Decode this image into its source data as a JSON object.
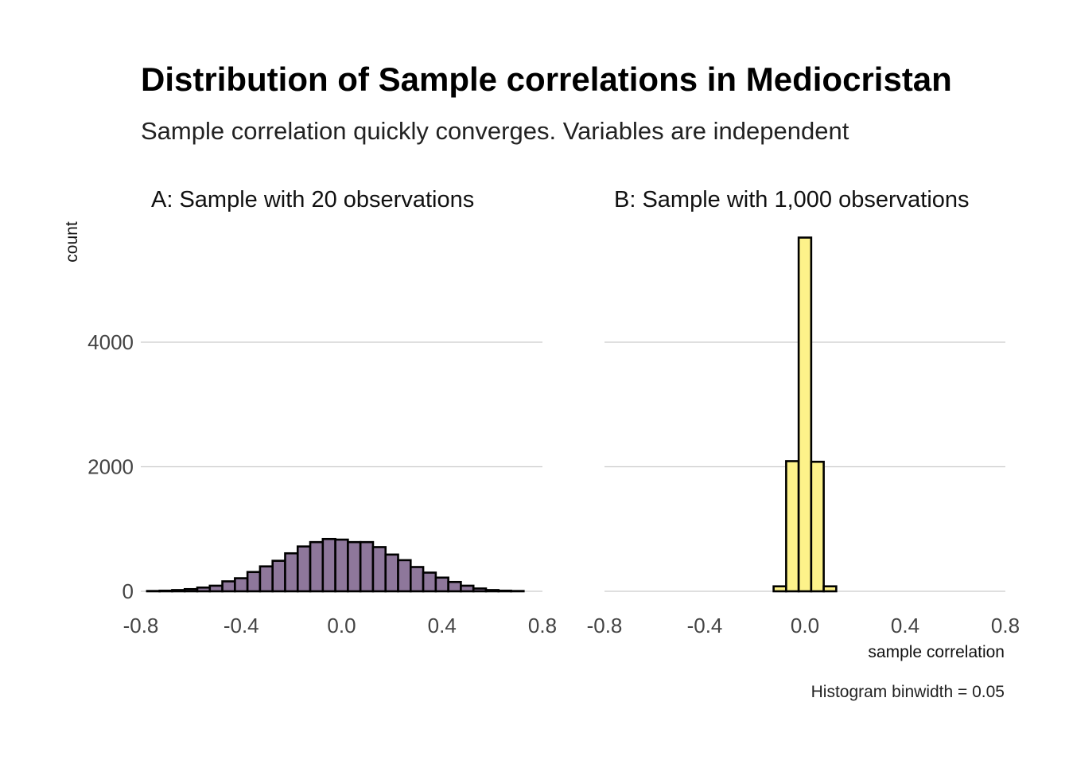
{
  "chart_data": {
    "type": "bar",
    "title": "Distribution of Sample correlations in Mediocristan",
    "subtitle": "Sample correlation quickly converges. Variables are independent",
    "xlabel": "sample correlation",
    "ylabel": "count",
    "caption": "Histogram binwidth = 0.05",
    "binwidth": 0.05,
    "xlim": [
      -0.8,
      0.8
    ],
    "ylim": [
      0,
      5800
    ],
    "x_ticks": [
      "-0.8",
      "-0.4",
      "0.0",
      "0.4",
      "0.8"
    ],
    "x_tick_values": [
      -0.8,
      -0.4,
      0.0,
      0.4,
      0.8
    ],
    "y_ticks": [
      "0",
      "2000",
      "4000"
    ],
    "y_tick_values": [
      0,
      2000,
      4000
    ],
    "grid": "horizontal",
    "bin_centers": [
      -0.75,
      -0.7,
      -0.65,
      -0.6,
      -0.55,
      -0.5,
      -0.45,
      -0.4,
      -0.35,
      -0.3,
      -0.25,
      -0.2,
      -0.15,
      -0.1,
      -0.05,
      0.0,
      0.05,
      0.1,
      0.15,
      0.2,
      0.25,
      0.3,
      0.35,
      0.4,
      0.45,
      0.5,
      0.55,
      0.6,
      0.65,
      0.7
    ],
    "panels": [
      {
        "label": "A: Sample with 20 observations",
        "fill": "#8e779b",
        "values": [
          5,
          10,
          20,
          35,
          60,
          90,
          160,
          210,
          310,
          400,
          490,
          610,
          720,
          790,
          840,
          830,
          790,
          790,
          710,
          590,
          500,
          390,
          300,
          220,
          150,
          90,
          45,
          20,
          10,
          5
        ]
      },
      {
        "label": "B: Sample with 1,000 observations",
        "fill": "#fdf28a",
        "values": [
          0,
          0,
          0,
          0,
          0,
          0,
          0,
          0,
          0,
          0,
          0,
          0,
          0,
          80,
          2090,
          5680,
          2080,
          80,
          0,
          0,
          0,
          0,
          0,
          0,
          0,
          0,
          0,
          0,
          0,
          0
        ]
      }
    ]
  }
}
